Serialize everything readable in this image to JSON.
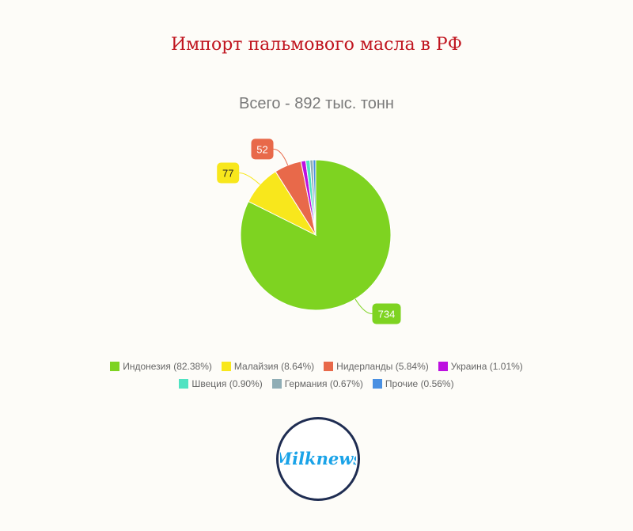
{
  "title": "Импорт пальмового масла в РФ",
  "chart_data": {
    "type": "pie",
    "title": "Всего - 892 тыс. тонн",
    "legend_position": "bottom",
    "slices": [
      {
        "name": "Индонезия",
        "value": 734,
        "percent_label": "82.38%",
        "color": "#7ed321",
        "label": "734",
        "label_color": "#ffffff"
      },
      {
        "name": "Малайзия",
        "value": 77,
        "percent_label": "8.64%",
        "color": "#f8e71c",
        "label": "77",
        "label_color": "#222222"
      },
      {
        "name": "Нидерланды",
        "value": 52,
        "percent_label": "5.84%",
        "color": "#e8694a",
        "label": "52",
        "label_color": "#ffffff"
      },
      {
        "name": "Украина",
        "value": 9,
        "percent_label": "1.01%",
        "color": "#bd10e0",
        "label": "",
        "label_color": "#ffffff"
      },
      {
        "name": "Швеция",
        "value": 8,
        "percent_label": "0.90%",
        "color": "#50e3c2",
        "label": "",
        "label_color": "#ffffff"
      },
      {
        "name": "Германия",
        "value": 6,
        "percent_label": "0.67%",
        "color": "#8fadb5",
        "label": "",
        "label_color": "#ffffff"
      },
      {
        "name": "Прочие",
        "value": 5,
        "percent_label": "0.56%",
        "color": "#4a90e2",
        "label": "",
        "label_color": "#ffffff"
      }
    ]
  },
  "logo": {
    "text": "Milknews",
    "text_color": "#1aa3e8",
    "ring_color": "#1f2d52"
  }
}
